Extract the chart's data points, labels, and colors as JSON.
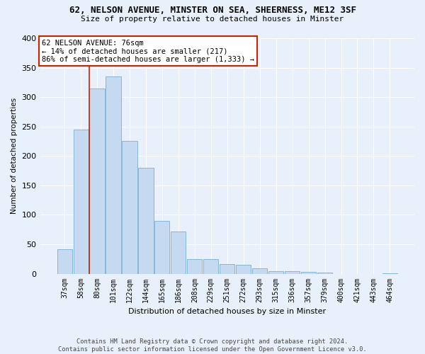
{
  "title1": "62, NELSON AVENUE, MINSTER ON SEA, SHEERNESS, ME12 3SF",
  "title2": "Size of property relative to detached houses in Minster",
  "xlabel": "Distribution of detached houses by size in Minster",
  "ylabel": "Number of detached properties",
  "footer1": "Contains HM Land Registry data © Crown copyright and database right 2024.",
  "footer2": "Contains public sector information licensed under the Open Government Licence v3.0.",
  "bar_labels": [
    "37sqm",
    "58sqm",
    "80sqm",
    "101sqm",
    "122sqm",
    "144sqm",
    "165sqm",
    "186sqm",
    "208sqm",
    "229sqm",
    "251sqm",
    "272sqm",
    "293sqm",
    "315sqm",
    "336sqm",
    "357sqm",
    "379sqm",
    "400sqm",
    "421sqm",
    "443sqm",
    "464sqm"
  ],
  "bar_values": [
    42,
    245,
    315,
    335,
    225,
    180,
    90,
    72,
    25,
    25,
    16,
    15,
    9,
    4,
    4,
    3,
    2,
    0,
    0,
    0,
    1
  ],
  "bar_color": "#c5d9f0",
  "bar_edgecolor": "#7bafd4",
  "background_color": "#e8f0fb",
  "grid_color": "#ffffff",
  "annotation_line1": "62 NELSON AVENUE: 76sqm",
  "annotation_line2": "← 14% of detached houses are smaller (217)",
  "annotation_line3": "86% of semi-detached houses are larger (1,333) →",
  "vline_color": "#cc2200",
  "annotation_box_facecolor": "#ffffff",
  "annotation_box_edgecolor": "#cc2200",
  "ylim": [
    0,
    400
  ],
  "yticks": [
    0,
    50,
    100,
    150,
    200,
    250,
    300,
    350,
    400
  ]
}
